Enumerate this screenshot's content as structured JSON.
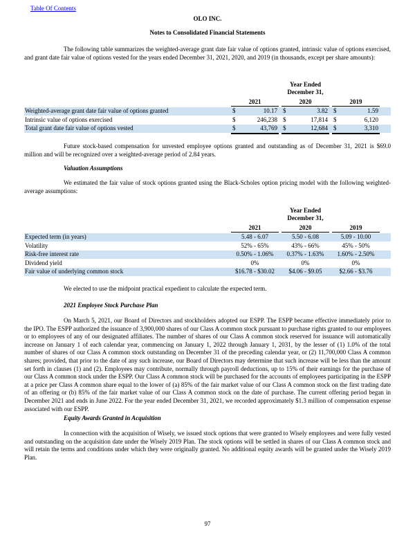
{
  "header": {
    "link": "Table Of Contents",
    "company": "OLO INC.",
    "title": "Notes to Consolidated Financial Statements"
  },
  "paragraphs": {
    "p1": "The following table summarizes the weighted-average grant date fair value of options granted, intrinsic value of options exercised, and grant date fair value of options vested for the years ended December 31, 2021, 2020, and 2019 (in thousands, except per share amounts):",
    "p2": "Future stock-based compensation for unvested employee options granted and outstanding as of December 31, 2021 is $69.0 million and will be recognized over a weighted-average period of 2.84 years.",
    "h1": "Valuation Assumptions",
    "p3": "We estimated the fair value of stock options granted using the Black-Scholes option pricing model with the following weighted-average assumptions:",
    "p4": "We elected to use the midpoint practical expedient to calculate the expected term.",
    "h2": "2021 Employee Stock Purchase Plan",
    "p5": "On March 5, 2021, our Board of Directors and stockholders adopted our ESPP. The ESPP became effective immediately prior to the IPO. The ESPP authorized the issuance of 3,900,000 shares of our Class A common stock pursuant to purchase rights granted to our employees or to employees of any of our designated affiliates. The number of shares of our Class A common stock reserved for issuance will automatically increase on January 1 of each calendar year, commencing on January 1, 2022 through January 1, 2031, by the lesser of (1) 1.0% of the total number of shares of our Class A common stock outstanding on December 31 of the preceding calendar year, or (2) 11,700,000 Class A common shares; provided, that prior to the date of any such increase, our Board of Directors may determine that such increase will be less than the amount set forth in clauses (1) and (2). Employees may contribute, normally through payroll deductions, up to 15% of their earnings for the purchase of our Class A common stock under the ESPP. Our Class A common stock will be purchased for the accounts of employees participating in the ESPP at a price per Class A common share equal to the lower of (a) 85% of the fair market value of our Class A common stock on the first trading date of an offering or (b) 85% of the fair market value of our Class A common stock on the date of purchase. The current offering period began in December 2021 and ends in June 2022. For the year ended December 31, 2021, we recorded approximately $1.3 million of compensation expense associated with our ESPP.",
    "h3": "Equity Awards Granted in Acquisition",
    "p6": "In connection with the acquisition of Wisely, we issued stock options that were granted to Wisely employees and were fully vested and outstanding on the acquisition date under the Wisely 2019 Plan. The stock options will be settled in shares of our Class A common stock and will retain the terms and conditions under which they were originally granted. No additional equity awards will be granted under the Wisely 2019 Plan."
  },
  "table1": {
    "period": "Year Ended",
    "period_end": "December 31,",
    "years": [
      "2021",
      "2020",
      "2019"
    ],
    "currency": "$",
    "rows": [
      [
        "Weighted-average grant date fair value of options granted",
        "10.17",
        "3.82",
        "1.59"
      ],
      [
        "Intrinsic value of options exercised",
        "246,238",
        "17,814",
        "6,120"
      ],
      [
        "Total grant date fair value of options vested",
        "43,769",
        "12,684",
        "3,310"
      ]
    ]
  },
  "table2": {
    "period": "Year Ended",
    "period_end": "December 31,",
    "years": [
      "2021",
      "2020",
      "2019"
    ],
    "rows": [
      [
        "Expected term (in years)",
        "5.48 - 6.07",
        "5.50 - 6.08",
        "5.09 - 10.00"
      ],
      [
        "Volatility",
        "52% - 65%",
        "43% - 66%",
        "45% - 50%"
      ],
      [
        "Risk-free interest rate",
        "0.50% - 1.06%",
        "0.37% - 1.63%",
        "1.60% - 2.50%"
      ],
      [
        "Dividend yield",
        "0%",
        "0%",
        "0%"
      ],
      [
        "Fair value of underlying common stock",
        "$16.78 - $30.02",
        "$4.06 - $9.05",
        "$2.66 - $3.76"
      ]
    ]
  },
  "footer": {
    "page": "97"
  }
}
